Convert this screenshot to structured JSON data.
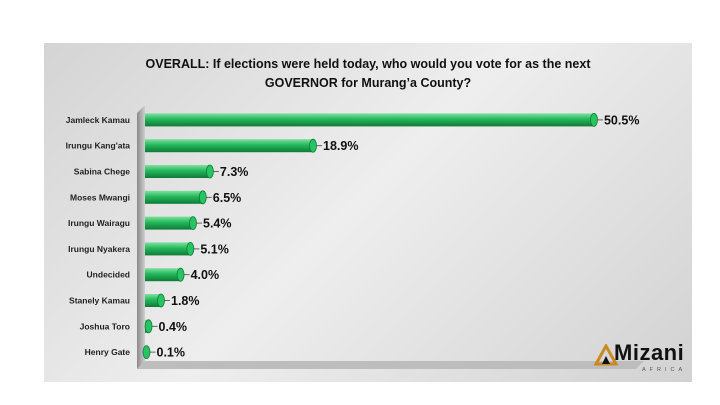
{
  "chart_data": {
    "type": "bar",
    "orientation": "horizontal",
    "title_line1": "OVERALL: If elections were held today, who would you vote for as the next",
    "title_line2": "GOVERNOR for Murang’a County?",
    "categories": [
      "Jamleck Kamau",
      "Irungu Kang'ata",
      "Sabina Chege",
      "Moses Mwangi",
      "Irungu Wairagu",
      "Irungu Nyakera",
      "Undecided",
      "Stanely Kamau",
      "Joshua Toro",
      "Henry Gate"
    ],
    "values": [
      50.5,
      18.9,
      7.3,
      6.5,
      5.4,
      5.1,
      4.0,
      1.8,
      0.4,
      0.1
    ],
    "value_labels": [
      "50.5%",
      "18.9%",
      "7.3%",
      "6.5%",
      "5.4%",
      "5.1%",
      "4.0%",
      "1.8%",
      "0.4%",
      "0.1%"
    ],
    "xlim": [
      0,
      55
    ],
    "grid": false,
    "bar_color": "#1fb85a",
    "legend": "none"
  },
  "logo": {
    "word": "Mizani",
    "sub": "AFRICA",
    "accent_color": "#c98a1f"
  }
}
